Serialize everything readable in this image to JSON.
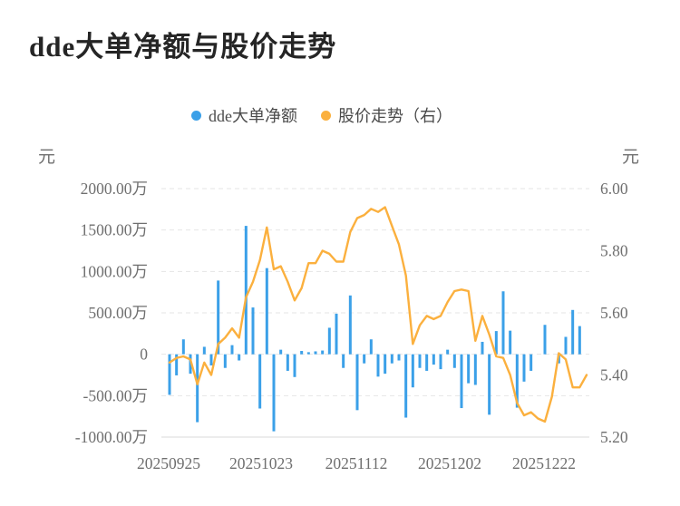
{
  "chart_data": {
    "type": "bar+line",
    "title": "dde大单净额与股价走势",
    "x_tick_labels": [
      "20250925",
      "20251023",
      "20251112",
      "20251202",
      "20251222"
    ],
    "x_tick_indices": [
      0,
      14,
      28,
      42,
      56
    ],
    "n_points": 61,
    "left_axis": {
      "unit": "元",
      "tick_labels": [
        "2000.00万",
        "1500.00万",
        "1000.00万",
        "500.00万",
        "0",
        "-500.00万",
        "-1000.00万"
      ],
      "range_wan": [
        -1000,
        2000
      ]
    },
    "right_axis": {
      "unit": "元",
      "tick_labels": [
        "6.00",
        "5.80",
        "5.60",
        "5.40",
        "5.20"
      ],
      "range": [
        5.2,
        6.0
      ]
    },
    "grid": {
      "horizontal_dashed": true,
      "color": "#e5e5e5",
      "axis_line_color": "#d9d9d9"
    },
    "series": [
      {
        "name": "dde大单净额",
        "type": "bar",
        "axis": "left",
        "unit": "万元",
        "color": "#3BA0E8",
        "values": [
          -490,
          -255,
          180,
          -235,
          -820,
          90,
          -135,
          890,
          -165,
          110,
          -75,
          1550,
          565,
          -655,
          1040,
          -930,
          55,
          -200,
          -275,
          40,
          25,
          35,
          45,
          320,
          490,
          -165,
          710,
          -675,
          -110,
          180,
          -270,
          -235,
          -110,
          -75,
          -765,
          -400,
          -165,
          -200,
          -125,
          -180,
          55,
          -165,
          -650,
          -350,
          -370,
          150,
          -730,
          280,
          760,
          285,
          -645,
          -330,
          -200,
          0,
          355,
          0,
          -110,
          210,
          535,
          340,
          0
        ]
      },
      {
        "name": "股价走势（右）",
        "type": "line",
        "axis": "right",
        "unit": "元",
        "color": "#FBB03E",
        "values": [
          5.44,
          5.455,
          5.46,
          5.45,
          5.37,
          5.44,
          5.4,
          5.5,
          5.52,
          5.55,
          5.52,
          5.65,
          5.7,
          5.77,
          5.875,
          5.74,
          5.75,
          5.7,
          5.64,
          5.68,
          5.76,
          5.76,
          5.8,
          5.79,
          5.765,
          5.765,
          5.86,
          5.905,
          5.915,
          5.935,
          5.925,
          5.94,
          5.88,
          5.82,
          5.72,
          5.5,
          5.56,
          5.59,
          5.58,
          5.59,
          5.635,
          5.67,
          5.675,
          5.67,
          5.51,
          5.59,
          5.53,
          5.46,
          5.455,
          5.4,
          5.31,
          5.27,
          5.28,
          5.26,
          5.25,
          5.33,
          5.47,
          5.45,
          5.36,
          5.36,
          5.4
        ]
      }
    ]
  }
}
